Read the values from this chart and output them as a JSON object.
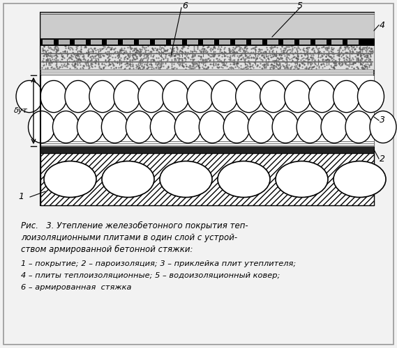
{
  "bg_color": "#f2f2f2",
  "title_line1": "Рис.   3. Утепление железобетонного покрытия теп-",
  "title_line2": "лоизоляционными плитами в один слой с устрой-",
  "title_line3": "ством армированной бетонной стяжки:",
  "legend_line1": "1 – покрытие; 2 – пароизоляция; 3 – приклейка плит утеплителя;",
  "legend_line2": "4 – плиты теплоизоляционные; 5 – водоизоляционный ковер;",
  "legend_line3": "6 – армированная  стяжка",
  "fig_width": 5.69,
  "fig_height": 5.0
}
